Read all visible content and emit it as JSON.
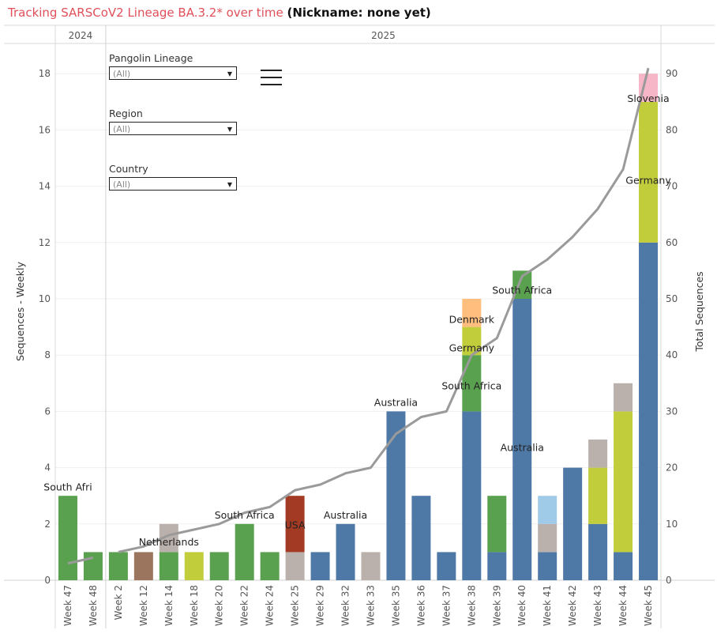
{
  "title": {
    "prefix": "Tracking SARSCoV2 Lineage BA.3.2* over time",
    "nickname": "(Nickname: none yet)",
    "close_paren": ")"
  },
  "filters": [
    {
      "label": "Pangolin Lineage",
      "value": "(All)"
    },
    {
      "label": "Region",
      "value": "(All)"
    },
    {
      "label": "Country",
      "value": "(All)"
    }
  ],
  "colors": {
    "Australia": "#4e79a7",
    "South Africa": "#59a14f",
    "Germany": "#c2cd3c",
    "Denmark": "#ffbe7d",
    "Slovenia": "#f7b6c8",
    "USA": "#a23a24",
    "Other grey": "#bab0ac",
    "Other brown": "#9c755f",
    "Other lightblue": "#a0cbe8",
    "line": "#9a9a9a"
  },
  "chart_data": {
    "type": "bar",
    "title": "Tracking SARSCoV2 Lineage BA.3.2* over time",
    "ylabel": "Sequences - Weekly",
    "y2label": "Total Sequences",
    "ylim": [
      0,
      18.6
    ],
    "y2lim": [
      0,
      93
    ],
    "yticks": [
      0,
      2,
      4,
      6,
      8,
      10,
      12,
      14,
      16,
      18
    ],
    "y2ticks": [
      0,
      10,
      20,
      30,
      40,
      50,
      60,
      70,
      80,
      90
    ],
    "years": [
      {
        "label": "2024",
        "start": 0,
        "end": 1
      },
      {
        "label": "2025",
        "start": 2,
        "end": 23
      }
    ],
    "categories": [
      "Week 47",
      "Week 48",
      "Week 2",
      "Week 12",
      "Week 14",
      "Week 18",
      "Week 20",
      "Week 22",
      "Week 24",
      "Week 25",
      "Week 29",
      "Week 32",
      "Week 33",
      "Week 35",
      "Week 36",
      "Week 37",
      "Week 38",
      "Week 39",
      "Week 40",
      "Week 41",
      "Week 42",
      "Week 43",
      "Week 44",
      "Week 45"
    ],
    "stacks": [
      [
        {
          "series": "South Africa",
          "value": 3
        }
      ],
      [
        {
          "series": "South Africa",
          "value": 1
        }
      ],
      [
        {
          "series": "South Africa",
          "value": 1
        }
      ],
      [
        {
          "series": "Other brown",
          "value": 1
        }
      ],
      [
        {
          "series": "South Africa",
          "value": 1
        },
        {
          "series": "Other grey",
          "value": 1
        }
      ],
      [
        {
          "series": "Germany",
          "value": 1
        }
      ],
      [
        {
          "series": "South Africa",
          "value": 1
        }
      ],
      [
        {
          "series": "South Africa",
          "value": 2
        }
      ],
      [
        {
          "series": "South Africa",
          "value": 1
        }
      ],
      [
        {
          "series": "Other grey",
          "value": 1
        },
        {
          "series": "USA",
          "value": 2
        }
      ],
      [
        {
          "series": "Australia",
          "value": 1
        }
      ],
      [
        {
          "series": "Australia",
          "value": 2
        }
      ],
      [
        {
          "series": "Other grey",
          "value": 1
        }
      ],
      [
        {
          "series": "Australia",
          "value": 6
        }
      ],
      [
        {
          "series": "Australia",
          "value": 3
        }
      ],
      [
        {
          "series": "Australia",
          "value": 1
        }
      ],
      [
        {
          "series": "Australia",
          "value": 6
        },
        {
          "series": "South Africa",
          "value": 2
        },
        {
          "series": "Germany",
          "value": 1
        },
        {
          "series": "Denmark",
          "value": 1
        }
      ],
      [
        {
          "series": "Australia",
          "value": 1
        },
        {
          "series": "South Africa",
          "value": 2
        }
      ],
      [
        {
          "series": "Australia",
          "value": 10
        },
        {
          "series": "South Africa",
          "value": 1
        }
      ],
      [
        {
          "series": "Australia",
          "value": 1
        },
        {
          "series": "Other grey",
          "value": 1
        },
        {
          "series": "Other lightblue",
          "value": 1
        }
      ],
      [
        {
          "series": "Australia",
          "value": 4
        }
      ],
      [
        {
          "series": "Australia",
          "value": 2
        },
        {
          "series": "Germany",
          "value": 2
        },
        {
          "series": "Other grey",
          "value": 1
        }
      ],
      [
        {
          "series": "Australia",
          "value": 1
        },
        {
          "series": "Germany",
          "value": 5
        },
        {
          "series": "Other grey",
          "value": 1
        }
      ],
      [
        {
          "series": "Australia",
          "value": 12
        },
        {
          "series": "Germany",
          "value": 5
        },
        {
          "series": "Slovenia",
          "value": 1
        }
      ]
    ],
    "cumulative_line": [
      3,
      4,
      5,
      6,
      8,
      9,
      10,
      12,
      13,
      16,
      17,
      19,
      20,
      26,
      29,
      30,
      40,
      43,
      54,
      57,
      61,
      66,
      73,
      91
    ],
    "annotations": [
      {
        "text": "South Afri",
        "bar": 0,
        "y": 3.3
      },
      {
        "text": "Netherlands",
        "bar": 4,
        "y": 1.35
      },
      {
        "text": "South Africa",
        "bar": 7,
        "y": 2.3
      },
      {
        "text": "USA",
        "bar": 9,
        "y": 1.95
      },
      {
        "text": "Australia",
        "bar": 11,
        "y": 2.3
      },
      {
        "text": "Australia",
        "bar": 13,
        "y": 6.3
      },
      {
        "text": "Denmark",
        "bar": 16,
        "y": 9.25
      },
      {
        "text": "Germany",
        "bar": 16,
        "y": 8.25
      },
      {
        "text": "South Africa",
        "bar": 16,
        "y": 6.9
      },
      {
        "text": "South Africa",
        "bar": 18,
        "y": 10.3
      },
      {
        "text": "Australia",
        "bar": 18,
        "y": 4.7
      },
      {
        "text": "Slovenia",
        "bar": 23,
        "y": 17.1
      },
      {
        "text": "Germany",
        "bar": 23,
        "y": 14.2
      }
    ]
  }
}
